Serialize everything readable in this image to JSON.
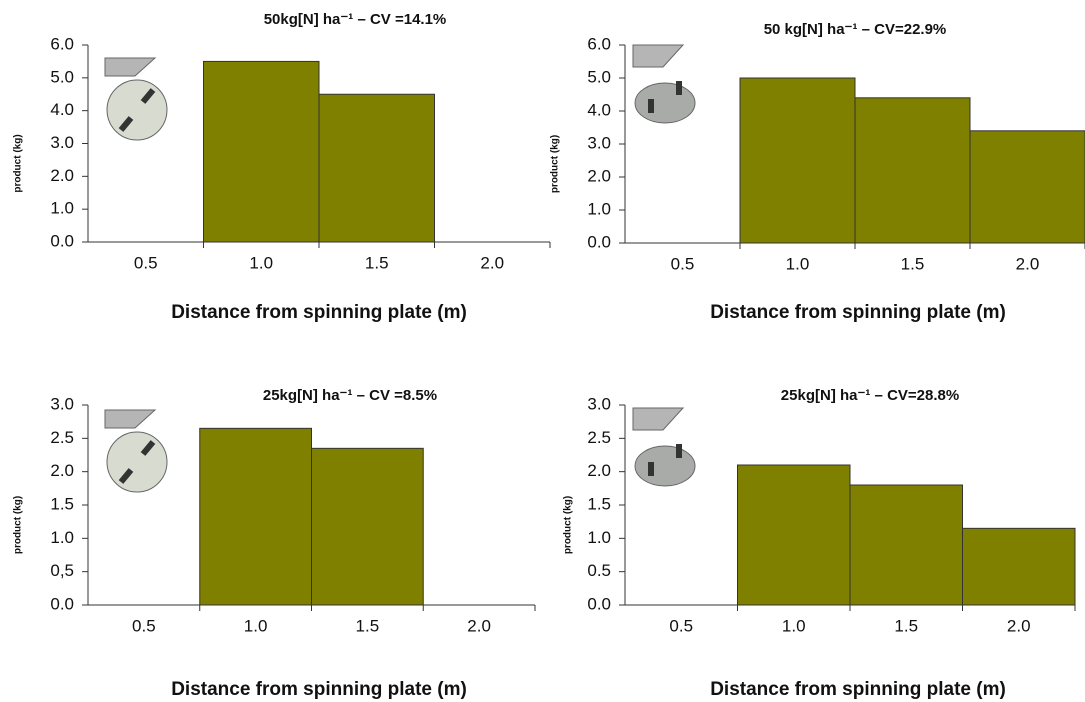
{
  "chart_data": [
    {
      "type": "bar",
      "title": "50kg[N] ha⁻¹ – CV =14.1%",
      "x_label": "Distance from spinning plate (m)",
      "y_label": "product (kg)",
      "categories": [
        "0.5",
        "1.0",
        "1.5",
        "2.0"
      ],
      "values": [
        0,
        5.5,
        4.5,
        0
      ],
      "color": "#7f7f00",
      "ylim": [
        0,
        6
      ],
      "yticks": [
        {
          "value": 0,
          "label": "0.0"
        },
        {
          "value": 1,
          "label": "1.0"
        },
        {
          "value": 2,
          "label": "2.0"
        },
        {
          "value": 3,
          "label": "3.0"
        },
        {
          "value": 4,
          "label": "4.0"
        },
        {
          "value": 5,
          "label": "5.0"
        },
        {
          "value": 6,
          "label": "6.0"
        }
      ]
    },
    {
      "type": "bar",
      "title": "50 kg[N] ha⁻¹ – CV=22.9%",
      "x_label": "Distance from spinning plate (m)",
      "y_label": "product (kg)",
      "categories": [
        "0.5",
        "1.0",
        "1.5",
        "2.0"
      ],
      "values": [
        0,
        5.0,
        4.4,
        3.4
      ],
      "color": "#7f7f00",
      "ylim": [
        0,
        6
      ],
      "yticks": [
        {
          "value": 0,
          "label": "0.0"
        },
        {
          "value": 1,
          "label": "1.0"
        },
        {
          "value": 2,
          "label": "2.0"
        },
        {
          "value": 3,
          "label": "3.0"
        },
        {
          "value": 4,
          "label": "4.0"
        },
        {
          "value": 5,
          "label": "5.0"
        },
        {
          "value": 6,
          "label": "6.0"
        }
      ]
    },
    {
      "type": "bar",
      "title": "25kg[N] ha⁻¹ – CV =8.5%",
      "x_label": "Distance from spinning plate (m)",
      "y_label": "product (kg)",
      "categories": [
        "0.5",
        "1.0",
        "1.5",
        "2.0"
      ],
      "values": [
        0,
        2.65,
        2.35,
        0
      ],
      "color": "#7f7f00",
      "ylim": [
        0,
        3
      ],
      "yticks": [
        {
          "value": 0,
          "label": "0.0"
        },
        {
          "value": 0.5,
          "label": "0,5"
        },
        {
          "value": 1,
          "label": "1.0"
        },
        {
          "value": 1.5,
          "label": "1.5"
        },
        {
          "value": 2,
          "label": "2.0"
        },
        {
          "value": 2.5,
          "label": "2.5"
        },
        {
          "value": 3,
          "label": "3.0"
        }
      ]
    },
    {
      "type": "bar",
      "title": "25kg[N] ha⁻¹ – CV=28.8%",
      "x_label": "Distance from spinning plate (m)",
      "y_label": "product (kg)",
      "categories": [
        "0.5",
        "1.0",
        "1.5",
        "2.0"
      ],
      "values": [
        0,
        2.1,
        1.8,
        1.15
      ],
      "color": "#7f7f00",
      "ylim": [
        0,
        3
      ],
      "yticks": [
        {
          "value": 0,
          "label": "0.0"
        },
        {
          "value": 0.5,
          "label": "0.5"
        },
        {
          "value": 1,
          "label": "1.0"
        },
        {
          "value": 1.5,
          "label": "1.5"
        },
        {
          "value": 2,
          "label": "2.0"
        },
        {
          "value": 2.5,
          "label": "2.5"
        },
        {
          "value": 3,
          "label": "3.0"
        }
      ]
    }
  ]
}
